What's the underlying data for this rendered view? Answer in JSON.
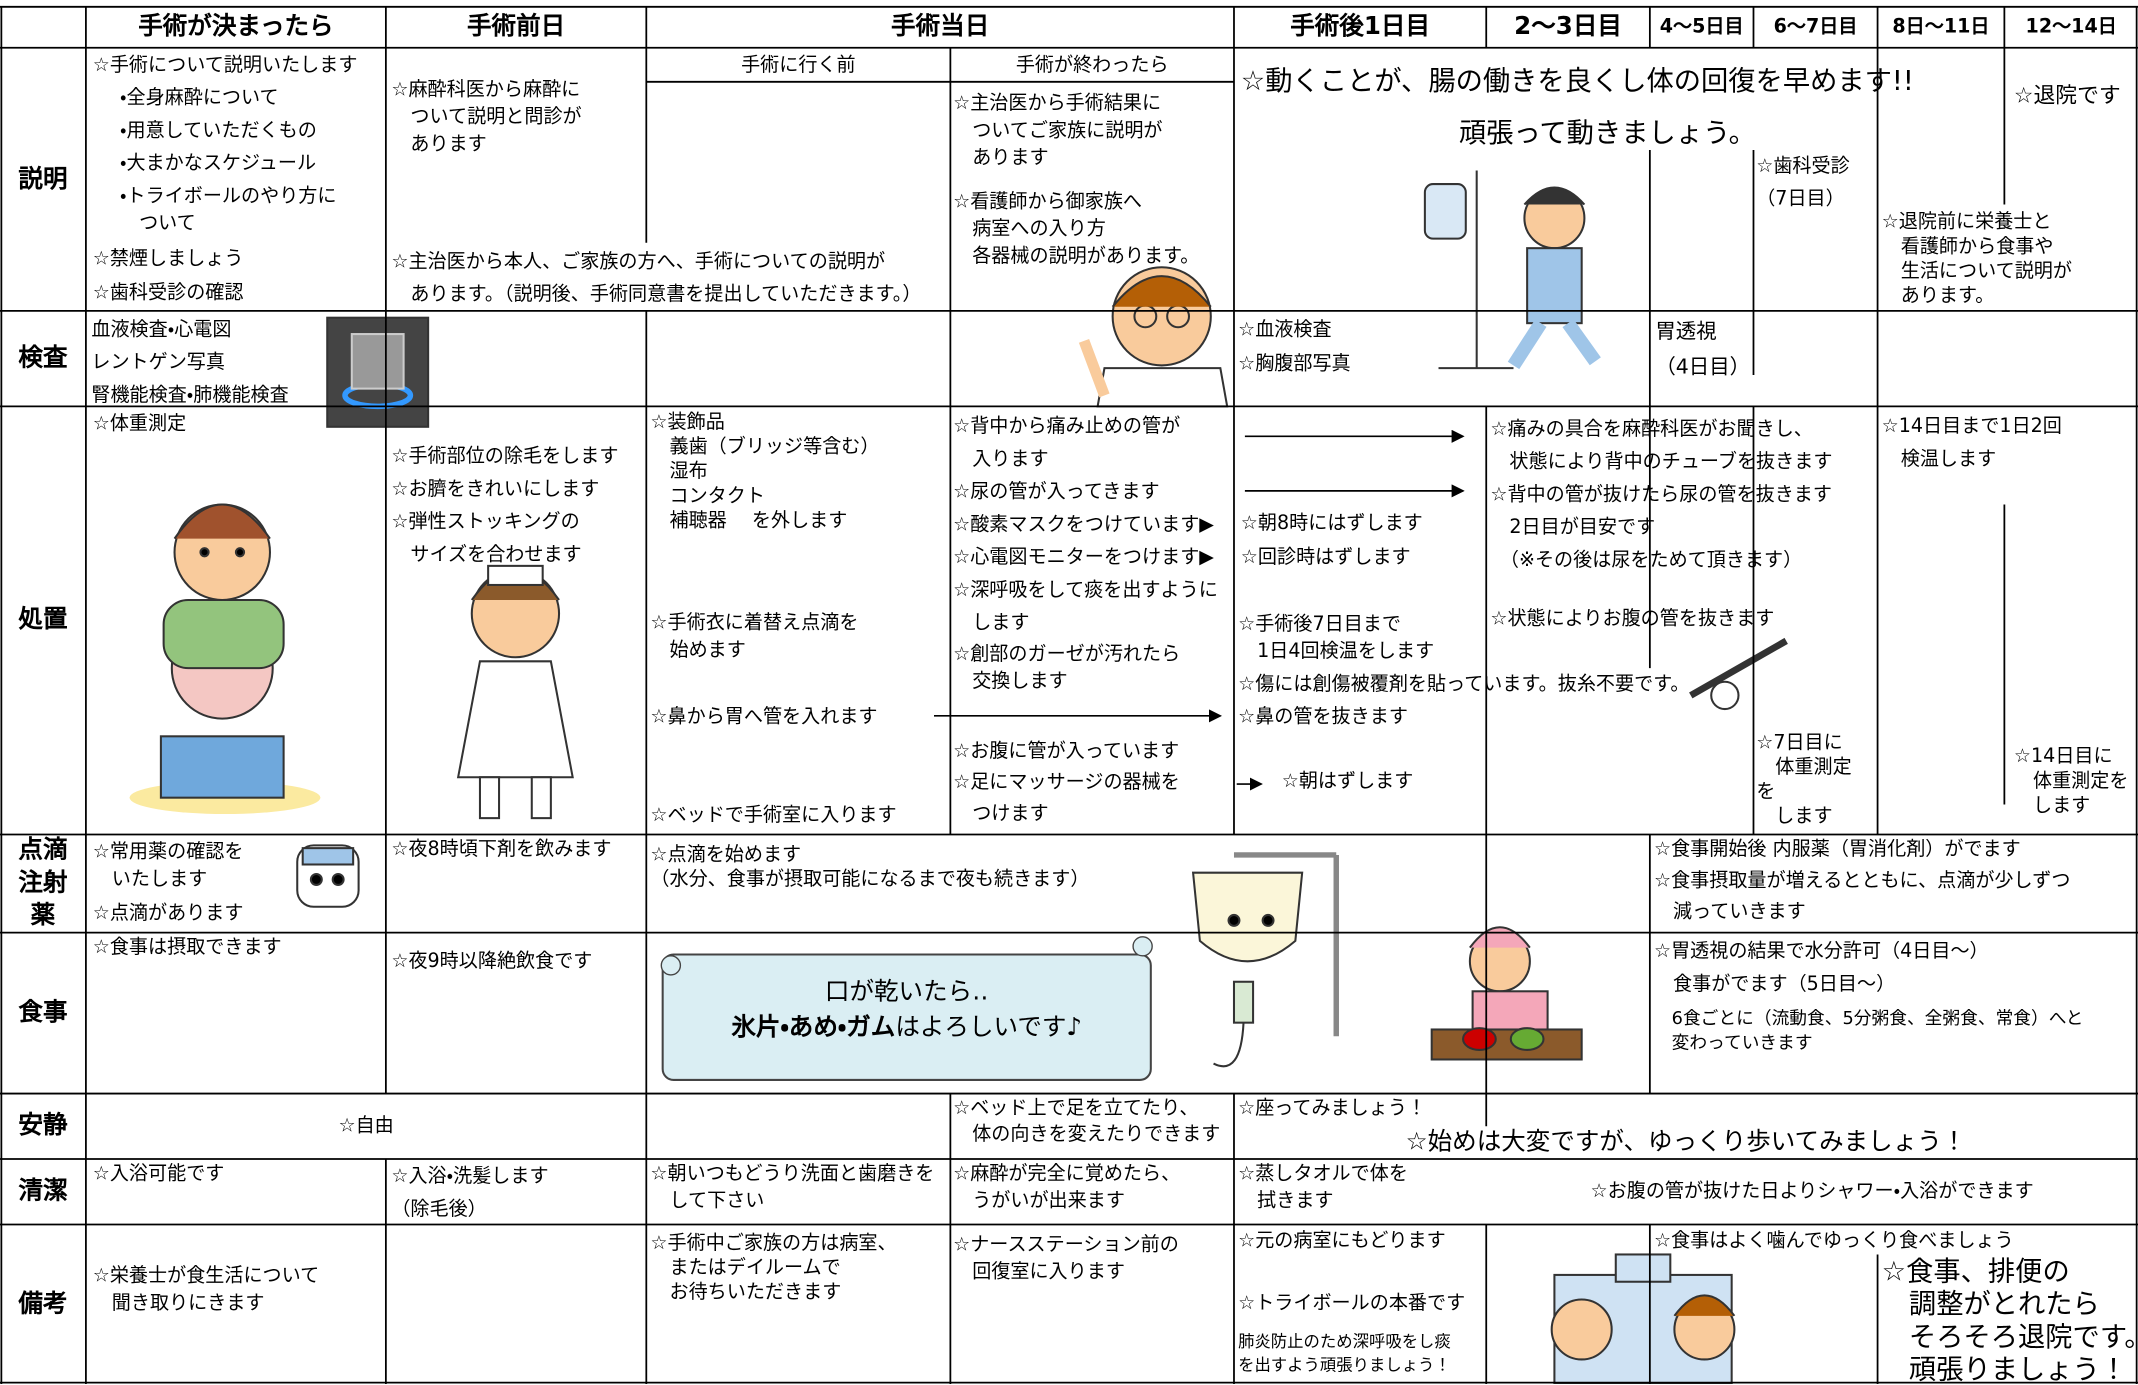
{
  "header": {
    "columns": [
      "手術が決まったら",
      "手術前日",
      "手術当日",
      "手術後1日目",
      "2～3日目",
      "4～5日目",
      "6～7日目",
      "8日～11日",
      "12～14日"
    ]
  },
  "surgery_day_subheaders": [
    "手術に行く前",
    "手術が終わったら"
  ],
  "rows": [
    {
      "label": "説明",
      "notes": [
        "☆手術について説明いたします",
        "・全身麻酔について",
        "・用意していただくもの",
        "・大まかなスケジュール",
        "・トライボールのやり方に\n　ついて",
        "☆禁煙しましょう",
        "☆歯科受診の確認",
        "☆麻酔科医から麻酔に\n　ついて説明と問診が\n　あります",
        "☆主治医から本人、ご家族の方へ、手術についての説明が\n　あります。（説明後、手術同意書を提出していただきます。）",
        "☆主治医から手術結果に\n　ついてご家族に説明が\n　あります",
        "☆看護師から御家族へ\n　病室への入り方\n　各器械の説明があります。",
        "☆動くことが、腸の働きを良くし体の回復を早めます!!",
        "頑張って動きましょう。",
        "☆歯科受診\n（7日目）",
        "☆退院です",
        "☆退院前に栄養士と\n　看護師から食事や\n　生活について説明が\n　あります。"
      ]
    },
    {
      "label": "検査",
      "notes": [
        "血液検査・心電図\nレントゲン写真\n腎機能検査・肺機能検査",
        "☆血液検査\n☆胸腹部写真",
        "胃透視\n（4日目）"
      ]
    },
    {
      "label": "処置",
      "notes": [
        "☆体重測定",
        "☆手術部位の除毛をします\n☆お臍をきれいにします\n☆弾性ストッキングの\n　サイズを合わせます",
        "☆装飾品\n　義歯（ブリッジ等含む）\n　湿布\n　コンタクト\n　補聴器　 を外します",
        "☆手術衣に着替え点滴を\n　始めます",
        "☆鼻から胃へ管を入れます",
        "☆ベッドで手術室に入ります",
        "☆背中から痛み止めの管が\n　入ります\n☆尿の管が入ってきます\n☆酸素マスクをつけています▶\n☆心電図モニターをつけます▶\n☆深呼吸をして痰を出すように\n　します",
        "☆創部のガーゼが汚れたら\n　交換します",
        "☆お腹に管が入っています\n☆足にマッサージの器械を\n　つけます",
        "☆朝8時にはずします\n☆回診時はずします",
        "☆手術後7日目まで\n　1日4回検温をします",
        "☆傷には創傷被覆剤を貼っています。抜糸不要です。",
        "☆鼻の管を抜きます",
        "☆朝はずします",
        "☆痛みの具合を麻酔科医がお聞きし、\n　状態により背中のチューブを抜きます\n☆背中の管が抜けたら尿の管を抜きます\n　2日目が目安です\n　（※その後は尿をためて頂きます）",
        "☆状態によりお腹の管を抜きます",
        "☆7日目に\n　体重測定\nを\n　します",
        "☆14日目まで1日2回\n　検温します",
        "☆14日目に\n　体重測定を\n　します"
      ]
    },
    {
      "label": "点滴\n注射\n薬",
      "notes": [
        "☆常用薬の確認を\n　いたします",
        "☆点滴があります",
        "☆夜8時頃下剤を飲みます",
        "☆点滴を始めます\n（水分、食事が摂取可能になるまで夜も続きます）",
        "☆食事開始後 内服薬（胃消化剤）がでます\n☆食事摂取量が増えるとともに、点滴が少しずつ\n　減っていきます"
      ]
    },
    {
      "label": "食事",
      "notes": [
        "☆食事は摂取できます",
        "☆夜9時以降絶飲食です",
        "☆胃透視の結果で水分許可（4日目～）\n　食事がでます（5日目～）",
        "　6食ごとに（流動食、5分粥食、全粥食、常食）へと\n　変わっていきます"
      ]
    },
    {
      "label": "安静",
      "notes": [
        "☆自由",
        "☆ベッド上で足を立てたり、\n　体の向きを変えたりできます",
        "☆座ってみましょう！",
        "☆始めは大変ですが、ゆっくり歩いてみましょう！"
      ]
    },
    {
      "label": "清潔",
      "notes": [
        "☆入浴可能です",
        "☆入浴・洗髪します\n（除毛後）",
        "☆朝いつもどうり洗面と歯磨きを\n　して下さい",
        "☆麻酔が完全に覚めたら、\n　うがいが出来ます",
        "☆蒸しタオルで体を\n　拭きます",
        "☆お腹の管が抜けた日よりシャワー・入浴ができます"
      ]
    },
    {
      "label": "備考",
      "notes": [
        "☆栄養士が食生活について\n　聞き取りにきます",
        "☆手術中ご家族の方は病室、\n　またはデイルームで\n　お待ちいただきます",
        "☆ナースステーション前の\n　回復室に入ります",
        "☆元の病室にもどります",
        "☆トライボールの本番です",
        "肺炎防止のため深呼吸をし痰\nを出すよう頑張りましょう！",
        "☆食事はよく噛んでゆっくり食べましょう",
        "☆食事、排便の\n　調整がとれたら\n　そろそろ退院です。\n　頑張りましょう！"
      ]
    }
  ],
  "banner": {
    "line1": "口が乾いたら‥",
    "line2_bold": "氷片・あめ・ガム",
    "line2_rest": "はよろしいです♪"
  }
}
